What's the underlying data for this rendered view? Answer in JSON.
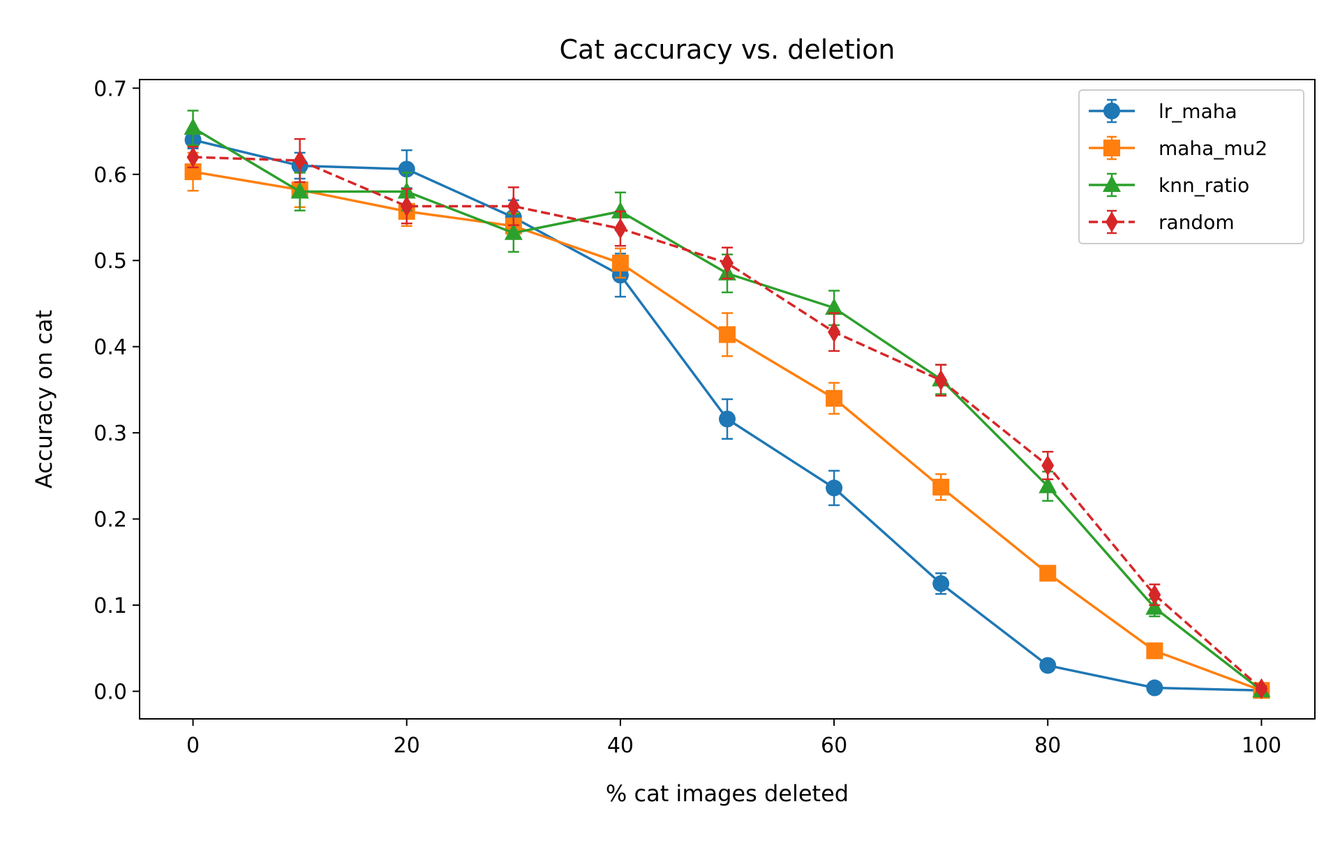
{
  "chart_data": {
    "type": "line",
    "title": "Cat accuracy vs. deletion",
    "xlabel": "% cat images deleted",
    "ylabel": "Accuracy on cat",
    "xlim": [
      -5,
      105
    ],
    "ylim": [
      -0.032,
      0.71
    ],
    "xticks": [
      0,
      20,
      40,
      60,
      80,
      100
    ],
    "xtick_labels": [
      "0",
      "20",
      "40",
      "60",
      "80",
      "100"
    ],
    "yticks": [
      0.0,
      0.1,
      0.2,
      0.3,
      0.4,
      0.5,
      0.6,
      0.7
    ],
    "ytick_labels": [
      "0.0",
      "0.1",
      "0.2",
      "0.3",
      "0.4",
      "0.5",
      "0.6",
      "0.7"
    ],
    "grid": false,
    "legend_position": "top-right",
    "x": [
      0,
      10,
      20,
      30,
      40,
      50,
      60,
      70,
      80,
      90,
      100
    ],
    "series": [
      {
        "name": "lr_maha",
        "color": "#1f77b4",
        "marker": "circle",
        "linestyle": "solid",
        "values": [
          0.64,
          0.61,
          0.606,
          0.55,
          0.483,
          0.316,
          0.236,
          0.125,
          0.03,
          0.004,
          0.001
        ],
        "errors": [
          0.01,
          0.015,
          0.022,
          0.02,
          0.025,
          0.023,
          0.02,
          0.012,
          0.004,
          0.002,
          0.001
        ]
      },
      {
        "name": "maha_mu2",
        "color": "#ff7f0e",
        "marker": "square",
        "linestyle": "solid",
        "values": [
          0.603,
          0.582,
          0.557,
          0.54,
          0.497,
          0.414,
          0.34,
          0.237,
          0.137,
          0.047,
          0.001
        ],
        "errors": [
          0.022,
          0.02,
          0.017,
          0.015,
          0.017,
          0.025,
          0.018,
          0.015,
          0.008,
          0.005,
          0.001
        ]
      },
      {
        "name": "knn_ratio",
        "color": "#2ca02c",
        "marker": "triangle",
        "linestyle": "solid",
        "values": [
          0.654,
          0.58,
          0.58,
          0.532,
          0.557,
          0.485,
          0.445,
          0.362,
          0.238,
          0.097,
          0.001
        ],
        "errors": [
          0.02,
          0.022,
          0.022,
          0.022,
          0.022,
          0.022,
          0.02,
          0.017,
          0.017,
          0.01,
          0.001
        ]
      },
      {
        "name": "random",
        "color": "#d62728",
        "marker": "diamond",
        "linestyle": "dashed",
        "values": [
          0.62,
          0.616,
          0.563,
          0.563,
          0.537,
          0.497,
          0.417,
          0.361,
          0.262,
          0.112,
          0.003
        ],
        "errors": [
          0.012,
          0.025,
          0.02,
          0.022,
          0.02,
          0.018,
          0.022,
          0.018,
          0.016,
          0.012,
          0.003
        ]
      }
    ]
  }
}
